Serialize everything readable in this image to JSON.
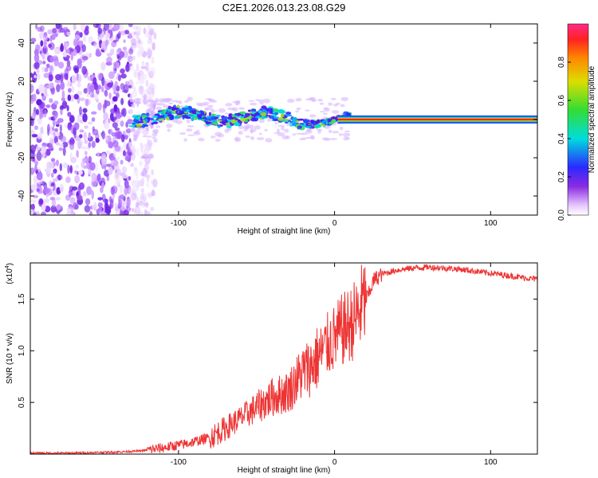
{
  "title": "C2E1.2026.013.23.08.G29",
  "chart_data": [
    {
      "type": "heatmap",
      "xlabel": "Height of straight line (km)",
      "ylabel": "Frequency (Hz)",
      "xlim": [
        -195,
        130
      ],
      "ylim": [
        -50,
        50
      ],
      "xticks": [
        -100,
        0,
        100
      ],
      "xtick_labels": [
        "-100",
        "0",
        "100"
      ],
      "yticks": [
        -40,
        -20,
        0,
        20,
        40
      ],
      "ytick_labels": [
        "-40",
        "-20",
        "0",
        "20",
        "40"
      ],
      "description_of_pattern": {
        "noise_region_x": [
          -195,
          -130
        ],
        "scatter_band_x": [
          -130,
          10
        ],
        "steady_line_x": [
          10,
          130
        ],
        "steady_line_frequency": 0
      },
      "colorbar": {
        "label": "Normalized spectral amplitude",
        "range": [
          0,
          1
        ],
        "ticks": [
          0.0,
          0.2,
          0.4,
          0.6,
          0.8
        ],
        "tick_labels": [
          "0.0",
          "0.2",
          "0.4",
          "0.6",
          "0.8"
        ]
      }
    },
    {
      "type": "line",
      "xlabel": "Height of straight line (km)",
      "ylabel": "SNR (10 * v/v)",
      "scale_label": "(x10",
      "scale_exponent": "4",
      "xlim": [
        -195,
        130
      ],
      "ylim": [
        0,
        1.85
      ],
      "xticks": [
        -100,
        0,
        100
      ],
      "xtick_labels": [
        "-100",
        "0",
        "100"
      ],
      "yticks": [
        0.5,
        1.0,
        1.5
      ],
      "ytick_labels": [
        "0.5",
        "1.0",
        "1.5"
      ],
      "series": [
        {
          "name": "SNR",
          "color": "#ee3333",
          "x": [
            -195,
            -170,
            -140,
            -125,
            -110,
            -95,
            -80,
            -70,
            -60,
            -50,
            -40,
            -30,
            -25,
            -20,
            -15,
            -10,
            -5,
            0,
            5,
            10,
            15,
            18,
            22,
            25,
            30,
            40,
            50,
            60,
            70,
            80,
            90,
            100,
            110,
            120,
            130
          ],
          "y": [
            0.01,
            0.01,
            0.02,
            0.03,
            0.06,
            0.1,
            0.16,
            0.25,
            0.35,
            0.45,
            0.55,
            0.6,
            0.7,
            0.8,
            0.85,
            0.95,
            1.05,
            1.12,
            1.2,
            1.25,
            1.35,
            1.45,
            1.55,
            1.68,
            1.74,
            1.78,
            1.8,
            1.81,
            1.8,
            1.79,
            1.77,
            1.75,
            1.73,
            1.71,
            1.69
          ]
        }
      ]
    }
  ]
}
